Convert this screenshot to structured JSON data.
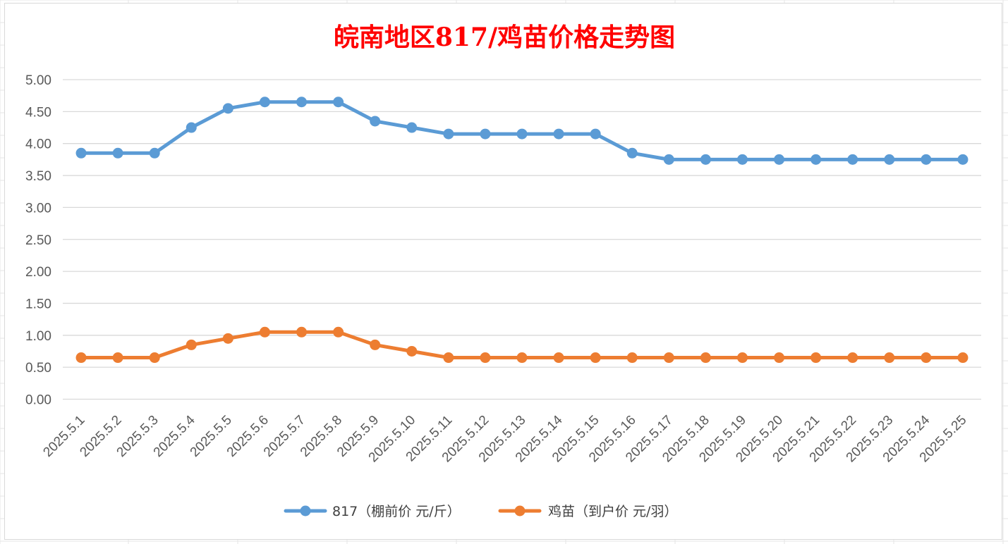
{
  "chart_data": {
    "type": "line",
    "title": "皖南地区817/鸡苗价格走势图",
    "xlabel": "",
    "ylabel": "",
    "ylim": [
      0,
      5
    ],
    "y_ticks": [
      "0.00",
      "0.50",
      "1.00",
      "1.50",
      "2.00",
      "2.50",
      "3.00",
      "3.50",
      "4.00",
      "4.50",
      "5.00"
    ],
    "grid": true,
    "legend_position": "bottom",
    "categories": [
      "2025.5.1",
      "2025.5.2",
      "2025.5.3",
      "2025.5.4",
      "2025.5.5",
      "2025.5.6",
      "2025.5.7",
      "2025.5.8",
      "2025.5.9",
      "2025.5.10",
      "2025.5.11",
      "2025.5.12",
      "2025.5.13",
      "2025.5.14",
      "2025.5.15",
      "2025.5.16",
      "2025.5.17",
      "2025.5.18",
      "2025.5.19",
      "2025.5.20",
      "2025.5.21",
      "2025.5.22",
      "2025.5.23",
      "2025.5.24",
      "2025.5.25"
    ],
    "series": [
      {
        "name": "817（棚前价 元/斤）",
        "color": "#5b9bd5",
        "values": [
          3.85,
          3.85,
          3.85,
          4.25,
          4.55,
          4.65,
          4.65,
          4.65,
          4.35,
          4.25,
          4.15,
          4.15,
          4.15,
          4.15,
          4.15,
          3.85,
          3.75,
          3.75,
          3.75,
          3.75,
          3.75,
          3.75,
          3.75,
          3.75,
          3.75
        ]
      },
      {
        "name": "鸡苗（到户价 元/羽）",
        "color": "#ed7d31",
        "values": [
          0.65,
          0.65,
          0.65,
          0.85,
          0.95,
          1.05,
          1.05,
          1.05,
          0.85,
          0.75,
          0.65,
          0.65,
          0.65,
          0.65,
          0.65,
          0.65,
          0.65,
          0.65,
          0.65,
          0.65,
          0.65,
          0.65,
          0.65,
          0.65,
          0.65
        ]
      }
    ]
  },
  "colors": {
    "gridline": "#d9d9d9",
    "sheet_grid": "#e6e6e6",
    "title": "#ff0000"
  }
}
